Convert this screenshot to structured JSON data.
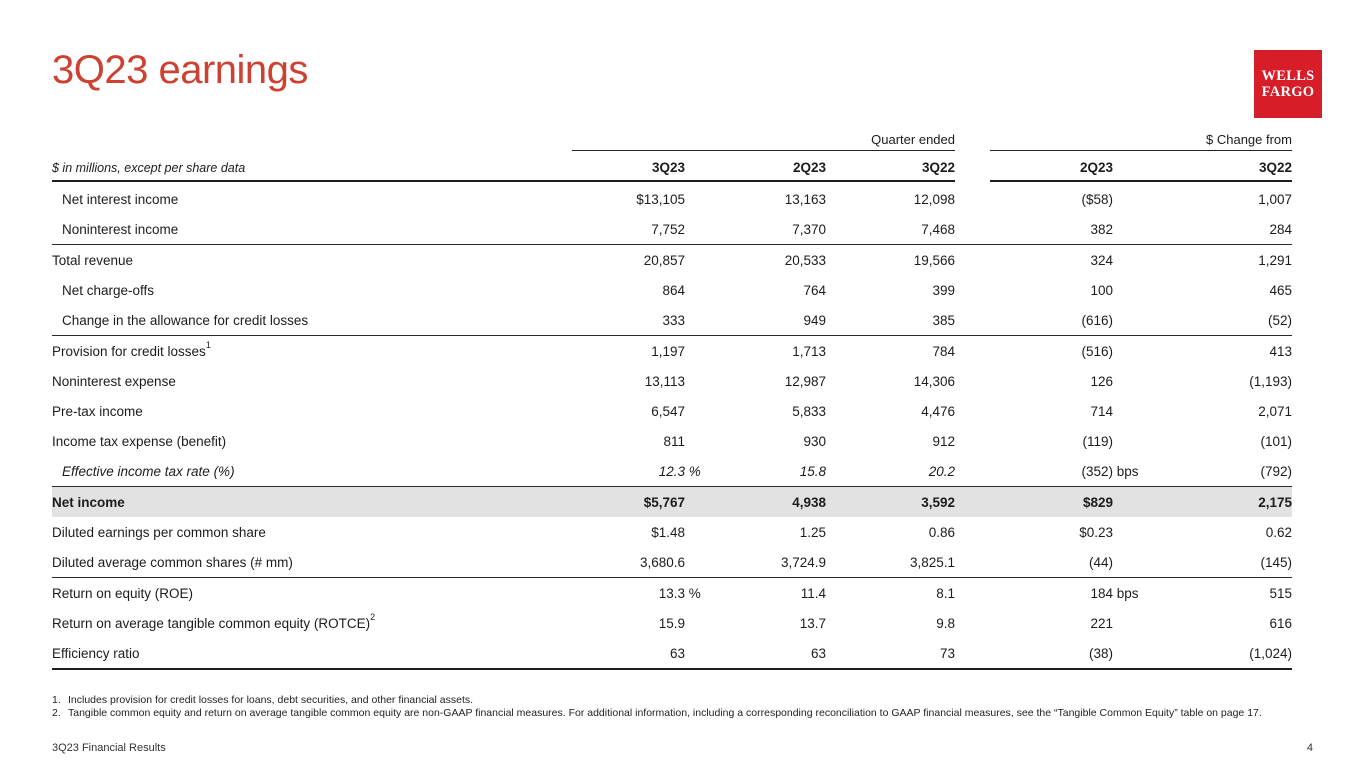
{
  "title": "3Q23 earnings",
  "logo": {
    "line1": "WELLS",
    "line2": "FARGO"
  },
  "colors": {
    "title_red": "#cd4132",
    "logo_red": "#d71e28",
    "highlight_gray": "#e2e2e2"
  },
  "table": {
    "note": "$ in millions, except per share data",
    "group_headers": [
      "Quarter ended",
      "$ Change from"
    ],
    "columns": [
      "3Q23",
      "2Q23",
      "3Q22",
      "2Q23",
      "3Q22"
    ],
    "rows": [
      {
        "label": "Net interest income",
        "indent": true,
        "values": [
          {
            "v": "$13,105"
          },
          {
            "v": "13,163"
          },
          {
            "v": "12,098"
          },
          {
            "v": "($58)"
          },
          {
            "v": "1,007"
          }
        ]
      },
      {
        "label": "Noninterest income",
        "indent": true,
        "rule": "thin",
        "values": [
          {
            "v": "7,752"
          },
          {
            "v": "7,370"
          },
          {
            "v": "7,468"
          },
          {
            "v": "382"
          },
          {
            "v": "284"
          }
        ]
      },
      {
        "label": "Total revenue",
        "values": [
          {
            "v": "20,857"
          },
          {
            "v": "20,533"
          },
          {
            "v": "19,566"
          },
          {
            "v": "324"
          },
          {
            "v": "1,291"
          }
        ]
      },
      {
        "label": "Net charge-offs",
        "indent": true,
        "values": [
          {
            "v": "864"
          },
          {
            "v": "764"
          },
          {
            "v": "399"
          },
          {
            "v": "100"
          },
          {
            "v": "465"
          }
        ]
      },
      {
        "label": "Change in the allowance for credit losses",
        "indent": true,
        "rule": "thin",
        "values": [
          {
            "v": "333"
          },
          {
            "v": "949"
          },
          {
            "v": "385"
          },
          {
            "v": "(616)"
          },
          {
            "v": "(52)"
          }
        ]
      },
      {
        "label": "Provision for credit losses",
        "sup": "1",
        "values": [
          {
            "v": "1,197"
          },
          {
            "v": "1,713"
          },
          {
            "v": "784"
          },
          {
            "v": "(516)"
          },
          {
            "v": "413"
          }
        ]
      },
      {
        "label": "Noninterest expense",
        "values": [
          {
            "v": "13,113"
          },
          {
            "v": "12,987"
          },
          {
            "v": "14,306"
          },
          {
            "v": "126"
          },
          {
            "v": "(1,193)"
          }
        ]
      },
      {
        "label": "Pre-tax income",
        "values": [
          {
            "v": "6,547"
          },
          {
            "v": "5,833"
          },
          {
            "v": "4,476"
          },
          {
            "v": "714"
          },
          {
            "v": "2,071"
          }
        ]
      },
      {
        "label": "Income tax expense (benefit)",
        "values": [
          {
            "v": "811"
          },
          {
            "v": "930"
          },
          {
            "v": "912"
          },
          {
            "v": "(119)"
          },
          {
            "v": "(101)"
          }
        ]
      },
      {
        "label": "Effective income tax rate (%)",
        "indent": true,
        "italic": true,
        "rule": "thin",
        "values": [
          {
            "v": "12.3",
            "sfx": "%"
          },
          {
            "v": "15.8"
          },
          {
            "v": "20.2"
          },
          {
            "v": "(352)",
            "sfx": "bps"
          },
          {
            "v": "(792)"
          }
        ]
      },
      {
        "label": "Net income",
        "bold": true,
        "highlight": true,
        "values": [
          {
            "v": "$5,767"
          },
          {
            "v": "4,938"
          },
          {
            "v": "3,592"
          },
          {
            "v": "$829"
          },
          {
            "v": "2,175"
          }
        ]
      },
      {
        "label": "Diluted earnings per common share",
        "values": [
          {
            "v": "$1.48"
          },
          {
            "v": "1.25"
          },
          {
            "v": "0.86"
          },
          {
            "v": "$0.23"
          },
          {
            "v": "0.62"
          }
        ]
      },
      {
        "label": "Diluted average common shares (# mm)",
        "rule": "thin",
        "values": [
          {
            "v": "3,680.6"
          },
          {
            "v": "3,724.9"
          },
          {
            "v": "3,825.1"
          },
          {
            "v": "(44)"
          },
          {
            "v": "(145)"
          }
        ]
      },
      {
        "label": "Return on equity (ROE)",
        "values": [
          {
            "v": "13.3",
            "sfx": "%"
          },
          {
            "v": "11.4"
          },
          {
            "v": "8.1"
          },
          {
            "v": "184",
            "sfx": "bps"
          },
          {
            "v": "515"
          }
        ]
      },
      {
        "label": "Return on average tangible common equity (ROTCE)",
        "sup": "2",
        "values": [
          {
            "v": "15.9"
          },
          {
            "v": "13.7"
          },
          {
            "v": "9.8"
          },
          {
            "v": "221"
          },
          {
            "v": "616"
          }
        ]
      },
      {
        "label": "Efficiency ratio",
        "rule": "thick",
        "values": [
          {
            "v": "63"
          },
          {
            "v": "63"
          },
          {
            "v": "73"
          },
          {
            "v": "(38)"
          },
          {
            "v": "(1,024)"
          }
        ]
      }
    ]
  },
  "footnotes": [
    {
      "num": "1.",
      "text": "Includes provision for credit losses for loans, debt securities, and other financial assets."
    },
    {
      "num": "2.",
      "text": "Tangible common equity and return on average tangible common equity are non-GAAP financial measures. For additional information, including a corresponding reconciliation to GAAP financial measures, see the “Tangible Common Equity” table on page 17."
    }
  ],
  "footer": {
    "left": "3Q23 Financial Results",
    "page": "4"
  }
}
